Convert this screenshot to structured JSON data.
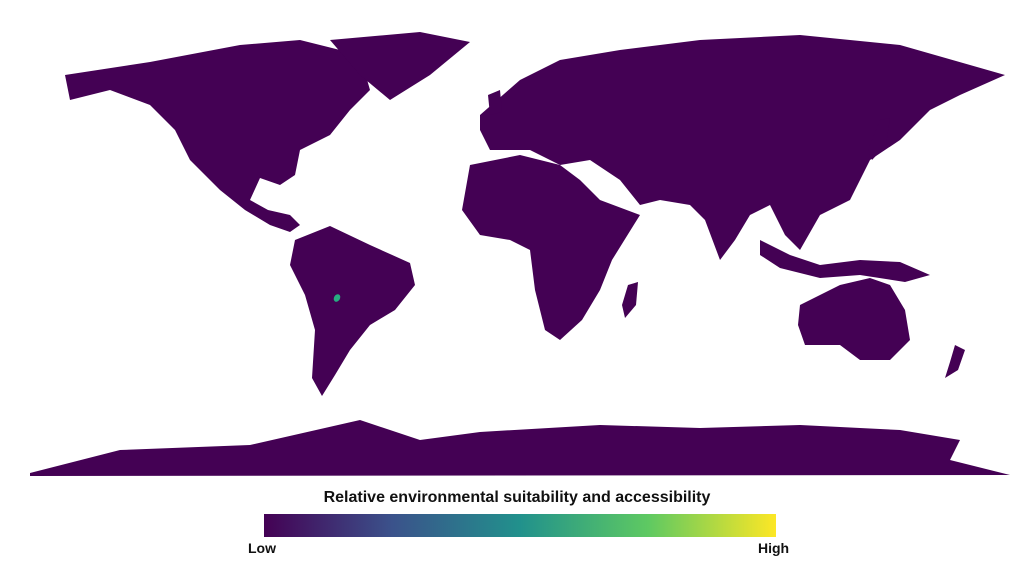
{
  "map": {
    "projection": "world, equirectangular-like",
    "base_color": "#440154",
    "hotspot": {
      "region": "central South America (Bolivia/Paraguay area)",
      "color": "#27ad81"
    }
  },
  "legend": {
    "title": "Relative environmental suitability and accessibility",
    "low_label": "Low",
    "high_label": "High",
    "colormap": "viridis",
    "colors": [
      "#440154",
      "#3b528b",
      "#21918c",
      "#5ec962",
      "#fde725"
    ]
  }
}
